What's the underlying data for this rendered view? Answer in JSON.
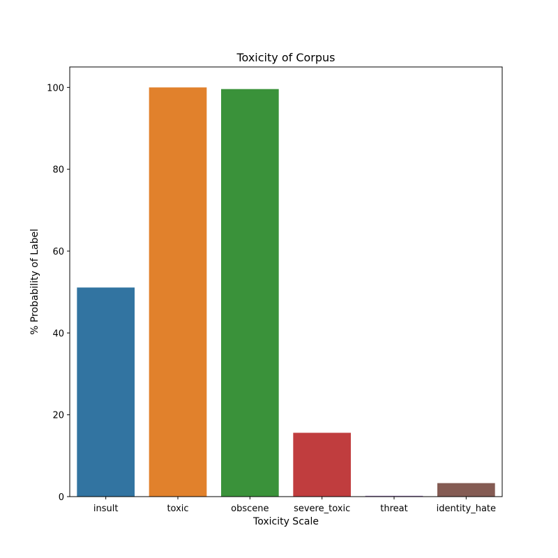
{
  "chart_data": {
    "type": "bar",
    "title": "Toxicity of Corpus",
    "xlabel": "Toxicity Scale",
    "ylabel": "% Probability of Label",
    "categories": [
      "insult",
      "toxic",
      "obscene",
      "severe_toxic",
      "threat",
      "identity_hate"
    ],
    "values": [
      51.1,
      100.0,
      99.6,
      15.6,
      0.2,
      3.3
    ],
    "colors": [
      "#3274a1",
      "#e1812c",
      "#3a923a",
      "#c03d3e",
      "#9372b2",
      "#845b53"
    ],
    "ylim": [
      0,
      105
    ],
    "yticks": [
      0,
      20,
      40,
      60,
      80,
      100
    ],
    "grid": false,
    "legend": "none"
  }
}
